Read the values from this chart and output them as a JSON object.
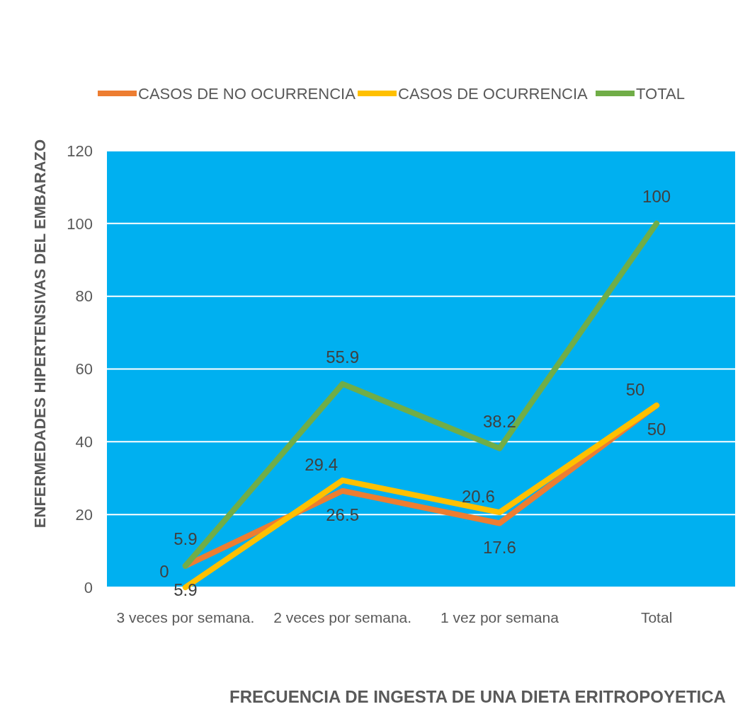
{
  "chart_data": {
    "type": "line",
    "xlabel": "FRECUENCIA DE INGESTA DE UNA DIETA ERITROPOYETICA",
    "ylabel": "ENFERMEDADES HIPERTENSIVAS DEL  EMBARAZO",
    "categories": [
      "3 veces por semana.",
      "2 veces por semana.",
      "1 vez por semana",
      "Total"
    ],
    "series": [
      {
        "name": "CASOS DE NO OCURRENCIA",
        "color": "#ed7d31",
        "values": [
          5.9,
          26.5,
          17.6,
          50
        ]
      },
      {
        "name": "CASOS DE OCURRENCIA",
        "color": "#ffc000",
        "values": [
          0,
          29.4,
          20.6,
          50
        ]
      },
      {
        "name": "TOTAL",
        "color": "#70ad47",
        "values": [
          5.9,
          55.9,
          38.2,
          100
        ]
      }
    ],
    "ylim": [
      0,
      120
    ],
    "yticks": [
      0,
      20,
      40,
      60,
      80,
      100,
      120
    ],
    "grid": "y",
    "legend": "top",
    "data_labels": true,
    "marker": "none",
    "line_style": "solid"
  }
}
